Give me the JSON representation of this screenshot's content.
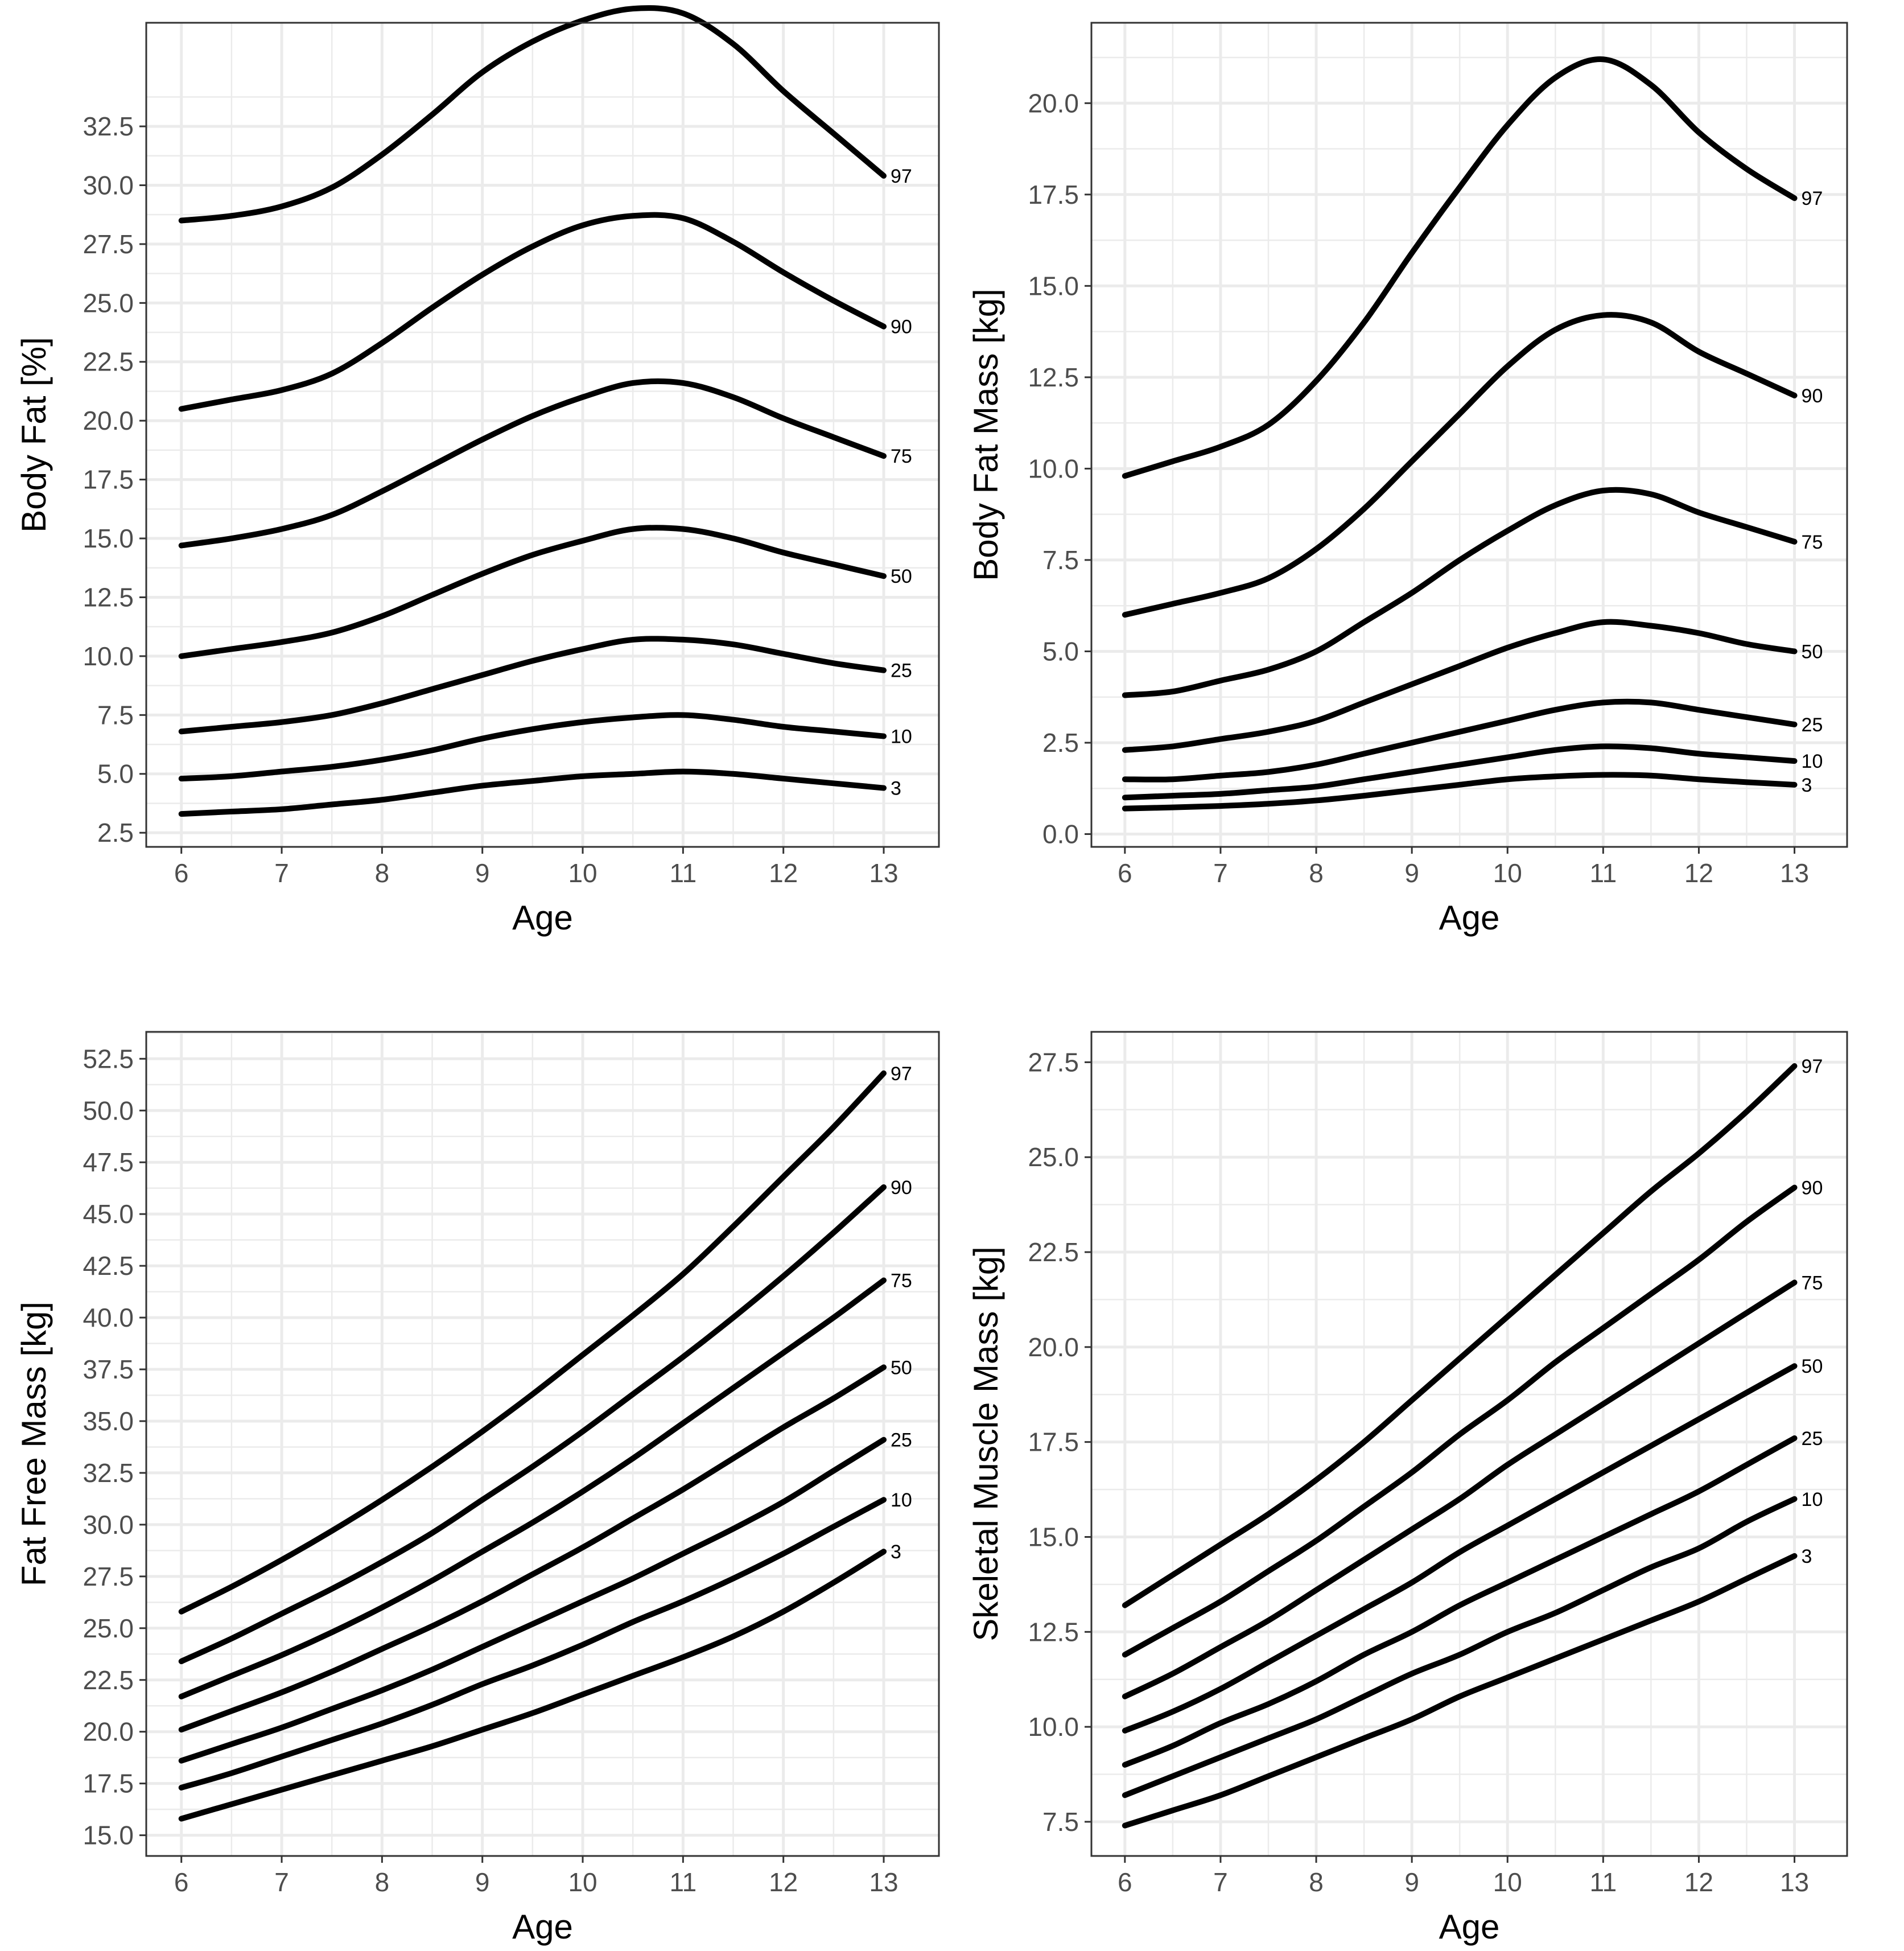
{
  "colors": {
    "background": "#ffffff",
    "grid": "#ebebeb",
    "line": "#000000",
    "frame": "#333333",
    "tick_text": "#4d4d4d"
  },
  "chart_data": [
    {
      "type": "line",
      "xlabel": "Age",
      "ylabel": "Body Fat [%]",
      "xlim": [
        5.65,
        13.55
      ],
      "ylim": [
        1.9,
        36.9
      ],
      "xticks": [
        6,
        7,
        8,
        9,
        10,
        11,
        12,
        13
      ],
      "yticks": [
        2.5,
        5.0,
        7.5,
        10.0,
        12.5,
        15.0,
        17.5,
        20.0,
        22.5,
        25.0,
        27.5,
        30.0,
        32.5
      ],
      "ytick_labels": [
        "2.5",
        "5.0",
        "7.5",
        "10.0",
        "12.5",
        "15.0",
        "17.5",
        "20.0",
        "22.5",
        "25.0",
        "27.5",
        "30.0",
        "32.5"
      ],
      "x": [
        6,
        6.5,
        7,
        7.5,
        8,
        8.5,
        9,
        9.5,
        10,
        10.5,
        11,
        11.5,
        12,
        12.5,
        13
      ],
      "series": [
        {
          "name": "97",
          "values": [
            28.5,
            28.7,
            29.1,
            29.9,
            31.3,
            33.0,
            34.8,
            36.1,
            37.0,
            37.5,
            37.3,
            36.0,
            34.0,
            32.2,
            30.4
          ]
        },
        {
          "name": "90",
          "values": [
            20.5,
            20.9,
            21.3,
            22.0,
            23.3,
            24.8,
            26.2,
            27.4,
            28.3,
            28.7,
            28.6,
            27.6,
            26.3,
            25.1,
            24.0
          ]
        },
        {
          "name": "75",
          "values": [
            14.7,
            15.0,
            15.4,
            16.0,
            17.0,
            18.1,
            19.2,
            20.2,
            21.0,
            21.6,
            21.6,
            21.0,
            20.1,
            19.3,
            18.5
          ]
        },
        {
          "name": "50",
          "values": [
            10.0,
            10.3,
            10.6,
            11.0,
            11.7,
            12.6,
            13.5,
            14.3,
            14.9,
            15.4,
            15.4,
            15.0,
            14.4,
            13.9,
            13.4
          ]
        },
        {
          "name": "25",
          "values": [
            6.8,
            7.0,
            7.2,
            7.5,
            8.0,
            8.6,
            9.2,
            9.8,
            10.3,
            10.7,
            10.7,
            10.5,
            10.1,
            9.7,
            9.4
          ]
        },
        {
          "name": "10",
          "values": [
            4.8,
            4.9,
            5.1,
            5.3,
            5.6,
            6.0,
            6.5,
            6.9,
            7.2,
            7.4,
            7.5,
            7.3,
            7.0,
            6.8,
            6.6
          ]
        },
        {
          "name": "3",
          "values": [
            3.3,
            3.4,
            3.5,
            3.7,
            3.9,
            4.2,
            4.5,
            4.7,
            4.9,
            5.0,
            5.1,
            5.0,
            4.8,
            4.6,
            4.4
          ]
        }
      ]
    },
    {
      "type": "line",
      "xlabel": "Age",
      "ylabel": "Body Fat Mass [kg]",
      "xlim": [
        5.65,
        13.55
      ],
      "ylim": [
        -0.35,
        22.2
      ],
      "xticks": [
        6,
        7,
        8,
        9,
        10,
        11,
        12,
        13
      ],
      "yticks": [
        0,
        2.5,
        5.0,
        7.5,
        10.0,
        12.5,
        15.0,
        17.5,
        20.0
      ],
      "ytick_labels": [
        "0.0",
        "2.5",
        "5.0",
        "7.5",
        "10.0",
        "12.5",
        "15.0",
        "17.5",
        "20.0"
      ],
      "x": [
        6,
        6.5,
        7,
        7.5,
        8,
        8.5,
        9,
        9.5,
        10,
        10.5,
        11,
        11.5,
        12,
        12.5,
        13
      ],
      "series": [
        {
          "name": "97",
          "values": [
            9.8,
            10.2,
            10.6,
            11.2,
            12.4,
            14.0,
            15.9,
            17.7,
            19.4,
            20.7,
            21.2,
            20.5,
            19.2,
            18.2,
            17.4
          ]
        },
        {
          "name": "90",
          "values": [
            6.0,
            6.3,
            6.6,
            7.0,
            7.8,
            8.9,
            10.2,
            11.5,
            12.8,
            13.8,
            14.2,
            14.0,
            13.2,
            12.6,
            12.0
          ]
        },
        {
          "name": "75",
          "values": [
            3.8,
            3.9,
            4.2,
            4.5,
            5.0,
            5.8,
            6.6,
            7.5,
            8.3,
            9.0,
            9.4,
            9.3,
            8.8,
            8.4,
            8.0
          ]
        },
        {
          "name": "50",
          "values": [
            2.3,
            2.4,
            2.6,
            2.8,
            3.1,
            3.6,
            4.1,
            4.6,
            5.1,
            5.5,
            5.8,
            5.7,
            5.5,
            5.2,
            5.0
          ]
        },
        {
          "name": "25",
          "values": [
            1.5,
            1.5,
            1.6,
            1.7,
            1.9,
            2.2,
            2.5,
            2.8,
            3.1,
            3.4,
            3.6,
            3.6,
            3.4,
            3.2,
            3.0
          ]
        },
        {
          "name": "10",
          "values": [
            1.0,
            1.05,
            1.1,
            1.2,
            1.3,
            1.5,
            1.7,
            1.9,
            2.1,
            2.3,
            2.4,
            2.35,
            2.2,
            2.1,
            2.0
          ]
        },
        {
          "name": "3",
          "values": [
            0.7,
            0.73,
            0.77,
            0.83,
            0.92,
            1.05,
            1.2,
            1.35,
            1.5,
            1.58,
            1.62,
            1.6,
            1.5,
            1.42,
            1.35
          ]
        }
      ]
    },
    {
      "type": "line",
      "xlabel": "Age",
      "ylabel": "Fat Free Mass [kg]",
      "xlim": [
        5.65,
        13.55
      ],
      "ylim": [
        14.0,
        53.8
      ],
      "xticks": [
        6,
        7,
        8,
        9,
        10,
        11,
        12,
        13
      ],
      "yticks": [
        15.0,
        17.5,
        20.0,
        22.5,
        25.0,
        27.5,
        30.0,
        32.5,
        35.0,
        37.5,
        40.0,
        42.5,
        45.0,
        47.5,
        50.0,
        52.5
      ],
      "ytick_labels": [
        "15.0",
        "17.5",
        "20.0",
        "22.5",
        "25.0",
        "27.5",
        "30.0",
        "32.5",
        "35.0",
        "37.5",
        "40.0",
        "42.5",
        "45.0",
        "47.5",
        "50.0",
        "52.5"
      ],
      "x": [
        6,
        6.5,
        7,
        7.5,
        8,
        8.5,
        9,
        9.5,
        10,
        10.5,
        11,
        11.5,
        12,
        12.5,
        13
      ],
      "series": [
        {
          "name": "97",
          "values": [
            25.8,
            27.0,
            28.3,
            29.7,
            31.2,
            32.8,
            34.5,
            36.3,
            38.2,
            40.1,
            42.1,
            44.4,
            46.8,
            49.2,
            51.8
          ]
        },
        {
          "name": "90",
          "values": [
            23.4,
            24.5,
            25.7,
            26.9,
            28.2,
            29.6,
            31.2,
            32.8,
            34.5,
            36.3,
            38.1,
            40.0,
            42.0,
            44.1,
            46.3
          ]
        },
        {
          "name": "75",
          "values": [
            21.7,
            22.7,
            23.7,
            24.8,
            26.0,
            27.3,
            28.7,
            30.1,
            31.6,
            33.2,
            34.9,
            36.6,
            38.3,
            40.0,
            41.8
          ]
        },
        {
          "name": "50",
          "values": [
            20.1,
            21.0,
            21.9,
            22.9,
            24.0,
            25.1,
            26.3,
            27.6,
            28.9,
            30.3,
            31.7,
            33.2,
            34.7,
            36.1,
            37.6
          ]
        },
        {
          "name": "25",
          "values": [
            18.6,
            19.4,
            20.2,
            21.1,
            22.0,
            23.0,
            24.1,
            25.2,
            26.3,
            27.4,
            28.6,
            29.8,
            31.1,
            32.6,
            34.1
          ]
        },
        {
          "name": "10",
          "values": [
            17.3,
            18.0,
            18.8,
            19.6,
            20.4,
            21.3,
            22.3,
            23.2,
            24.2,
            25.3,
            26.3,
            27.4,
            28.6,
            29.9,
            31.2
          ]
        },
        {
          "name": "3",
          "values": [
            15.8,
            16.5,
            17.2,
            17.9,
            18.6,
            19.3,
            20.1,
            20.9,
            21.8,
            22.7,
            23.6,
            24.6,
            25.8,
            27.2,
            28.7
          ]
        }
      ]
    },
    {
      "type": "line",
      "xlabel": "Age",
      "ylabel": "Skeletal Muscle Mass [kg]",
      "xlim": [
        5.65,
        13.55
      ],
      "ylim": [
        6.6,
        28.3
      ],
      "xticks": [
        6,
        7,
        8,
        9,
        10,
        11,
        12,
        13
      ],
      "yticks": [
        7.5,
        10.0,
        12.5,
        15.0,
        17.5,
        20.0,
        22.5,
        25.0,
        27.5
      ],
      "ytick_labels": [
        "7.5",
        "10.0",
        "12.5",
        "15.0",
        "17.5",
        "20.0",
        "22.5",
        "25.0",
        "27.5"
      ],
      "x": [
        6,
        6.5,
        7,
        7.5,
        8,
        8.5,
        9,
        9.5,
        10,
        10.5,
        11,
        11.5,
        12,
        12.5,
        13
      ],
      "series": [
        {
          "name": "97",
          "values": [
            13.2,
            14.0,
            14.8,
            15.6,
            16.5,
            17.5,
            18.6,
            19.7,
            20.8,
            21.9,
            23.0,
            24.1,
            25.1,
            26.2,
            27.4
          ]
        },
        {
          "name": "90",
          "values": [
            11.9,
            12.6,
            13.3,
            14.1,
            14.9,
            15.8,
            16.7,
            17.7,
            18.6,
            19.6,
            20.5,
            21.4,
            22.3,
            23.3,
            24.2
          ]
        },
        {
          "name": "75",
          "values": [
            10.8,
            11.4,
            12.1,
            12.8,
            13.6,
            14.4,
            15.2,
            16.0,
            16.9,
            17.7,
            18.5,
            19.3,
            20.1,
            20.9,
            21.7
          ]
        },
        {
          "name": "50",
          "values": [
            9.9,
            10.4,
            11.0,
            11.7,
            12.4,
            13.1,
            13.8,
            14.6,
            15.3,
            16.0,
            16.7,
            17.4,
            18.1,
            18.8,
            19.5
          ]
        },
        {
          "name": "25",
          "values": [
            9.0,
            9.5,
            10.1,
            10.6,
            11.2,
            11.9,
            12.5,
            13.2,
            13.8,
            14.4,
            15.0,
            15.6,
            16.2,
            16.9,
            17.6
          ]
        },
        {
          "name": "10",
          "values": [
            8.2,
            8.7,
            9.2,
            9.7,
            10.2,
            10.8,
            11.4,
            11.9,
            12.5,
            13.0,
            13.6,
            14.2,
            14.7,
            15.4,
            16.0
          ]
        },
        {
          "name": "3",
          "values": [
            7.4,
            7.8,
            8.2,
            8.7,
            9.2,
            9.7,
            10.2,
            10.8,
            11.3,
            11.8,
            12.3,
            12.8,
            13.3,
            13.9,
            14.5
          ]
        }
      ]
    }
  ]
}
